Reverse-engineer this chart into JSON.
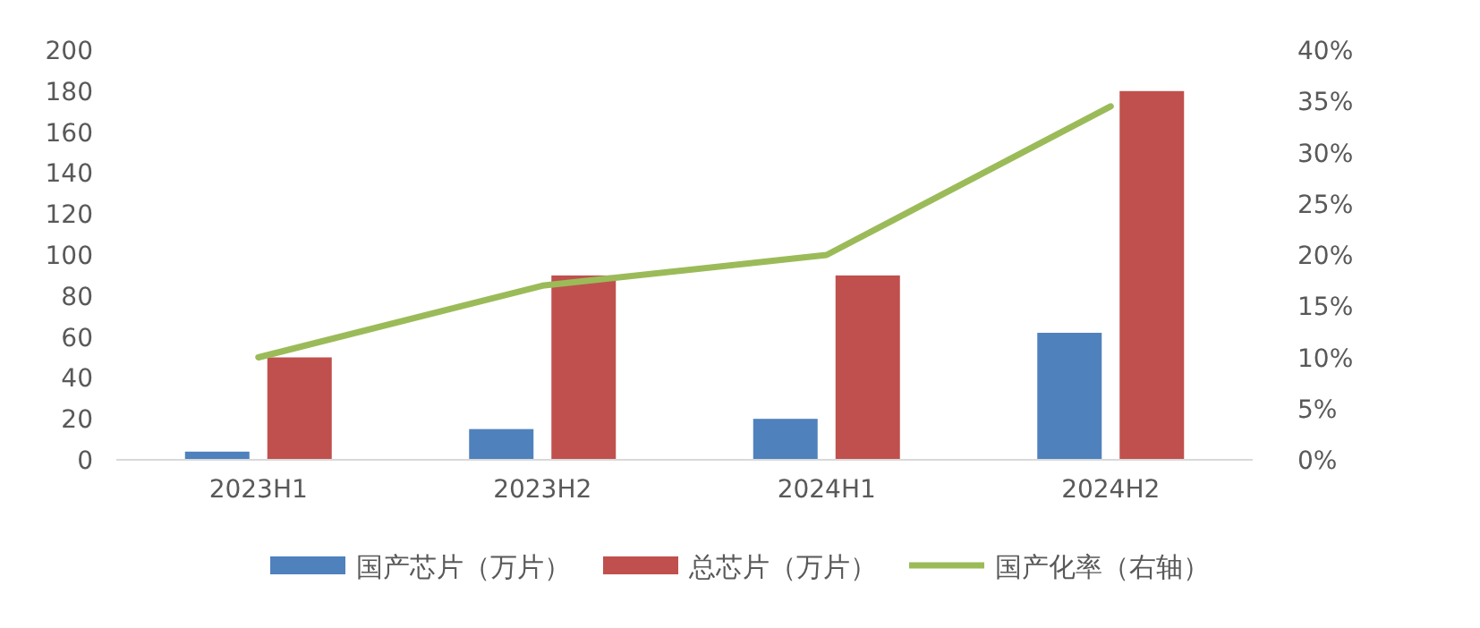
{
  "chart_data": {
    "type": "bar",
    "categories": [
      "2023H1",
      "2023H2",
      "2024H1",
      "2024H2"
    ],
    "series": [
      {
        "name": "国产芯片（万片）",
        "color": "#4f81bd",
        "values": [
          4,
          15,
          20,
          62
        ]
      },
      {
        "name": "总芯片（万片）",
        "color": "#c0504d",
        "values": [
          50,
          90,
          90,
          180
        ]
      },
      {
        "name": "国产化率（右轴）",
        "color": "#9bbb59",
        "type": "line",
        "axis": "y2",
        "values": [
          10,
          17,
          20,
          34.5
        ]
      }
    ],
    "ylim": [
      0,
      200
    ],
    "yticks": [
      0,
      20,
      40,
      60,
      80,
      100,
      120,
      140,
      160,
      180,
      200
    ],
    "y2lim": [
      0,
      40
    ],
    "y2ticks": [
      {
        "value": 0,
        "label": "0%"
      },
      {
        "value": 5,
        "label": "5%"
      },
      {
        "value": 10,
        "label": "10%"
      },
      {
        "value": 15,
        "label": "15%"
      },
      {
        "value": 20,
        "label": "20%"
      },
      {
        "value": 25,
        "label": "25%"
      },
      {
        "value": 30,
        "label": "30%"
      },
      {
        "value": 35,
        "label": "35%"
      },
      {
        "value": 40,
        "label": "40%"
      }
    ],
    "legend": "bottom"
  }
}
